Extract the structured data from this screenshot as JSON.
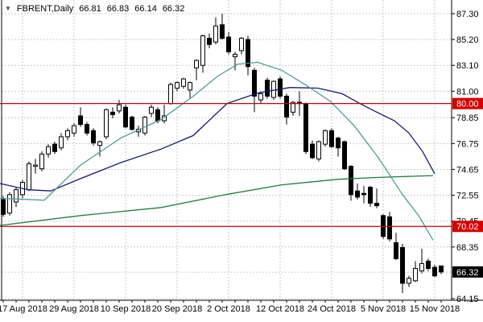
{
  "title": {
    "symbol_period": "FBRENT,Daily",
    "open": "66.81",
    "high": "66.83",
    "low": "66.14",
    "close": "66.32",
    "dropdown_icon": "symbol-dropdown"
  },
  "colors": {
    "background": "#ffffff",
    "grid": "#c9c9c9",
    "axis": "#000000",
    "candle_outline": "#000000",
    "candle_bull_fill": "#ffffff",
    "candle_bear_fill": "#000000",
    "ma_fast_teal": "#4e9c94",
    "ma_medium_navy": "#191970",
    "ma_slow_green": "#1f7a45",
    "hline_red": "#cc0000",
    "tag_red_bg": "#d40000",
    "tag_black_bg": "#000000",
    "tag_text": "#ffffff"
  },
  "chart_data": {
    "type": "candlestick",
    "title": "FBRENT,Daily 66.81 66.83 66.14 66.32",
    "symbol": "FBRENT",
    "timeframe": "Daily",
    "last_quote": {
      "open": 66.81,
      "high": 66.83,
      "low": 66.14,
      "close": 66.32
    },
    "ylim": [
      64.15,
      87.3
    ],
    "grid": true,
    "y_axis_labels": [
      {
        "text": "87.30",
        "price": 87.3
      },
      {
        "text": "85.20",
        "price": 85.2
      },
      {
        "text": "83.10",
        "price": 83.1
      },
      {
        "text": "81.00",
        "price": 81.0
      },
      {
        "text": "78.85",
        "price": 78.85
      },
      {
        "text": "76.75",
        "price": 76.75
      },
      {
        "text": "74.65",
        "price": 74.65
      },
      {
        "text": "72.55",
        "price": 72.55
      },
      {
        "text": "70.45",
        "price": 70.45
      },
      {
        "text": "68.35",
        "price": 68.35
      },
      {
        "text": "64.15",
        "price": 64.15
      }
    ],
    "extra_gridline_prices": [
      66.3
    ],
    "x_axis_labels": [
      {
        "text": "17 Aug 2018",
        "bar": 3
      },
      {
        "text": "29 Aug 2018",
        "bar": 11
      },
      {
        "text": "10 Sep 2018",
        "bar": 19
      },
      {
        "text": "20 Sep 2018",
        "bar": 27
      },
      {
        "text": "2 Oct 2018",
        "bar": 35
      },
      {
        "text": "12 Oct 2018",
        "bar": 43
      },
      {
        "text": "24 Oct 2018",
        "bar": 51
      },
      {
        "text": "5 Nov 2018",
        "bar": 59
      },
      {
        "text": "15 Nov 2018",
        "bar": 67
      }
    ],
    "candles_ohlc": [
      [
        72.2,
        72.5,
        70.8,
        71.0
      ],
      [
        71.1,
        72.8,
        70.9,
        72.6
      ],
      [
        72.0,
        73.2,
        71.6,
        73.0
      ],
      [
        72.6,
        73.8,
        72.3,
        73.6
      ],
      [
        73.0,
        75.3,
        72.9,
        75.1
      ],
      [
        74.9,
        75.5,
        74.3,
        75.0
      ],
      [
        74.7,
        76.1,
        74.5,
        75.9
      ],
      [
        75.9,
        76.7,
        75.6,
        76.5
      ],
      [
        76.7,
        76.9,
        75.9,
        76.1
      ],
      [
        76.4,
        77.6,
        76.2,
        77.3
      ],
      [
        77.3,
        78.0,
        77.0,
        77.8
      ],
      [
        77.6,
        78.4,
        77.3,
        78.2
      ],
      [
        79.0,
        79.7,
        78.1,
        78.3
      ],
      [
        78.3,
        78.5,
        77.4,
        77.6
      ],
      [
        77.8,
        78.0,
        76.6,
        76.8
      ],
      [
        76.6,
        77.0,
        75.7,
        76.9
      ],
      [
        77.3,
        79.6,
        77.1,
        79.5
      ],
      [
        79.3,
        79.7,
        78.8,
        79.1
      ],
      [
        79.4,
        80.3,
        79.2,
        79.9
      ],
      [
        79.7,
        79.9,
        78.0,
        78.1
      ],
      [
        78.9,
        79.0,
        77.8,
        77.9
      ],
      [
        77.7,
        78.2,
        77.3,
        77.9
      ],
      [
        77.6,
        79.0,
        77.4,
        78.9
      ],
      [
        79.2,
        79.9,
        78.9,
        79.7
      ],
      [
        79.5,
        79.7,
        78.4,
        78.6
      ],
      [
        78.6,
        79.9,
        78.4,
        79.0
      ],
      [
        80.0,
        81.7,
        79.9,
        81.55
      ],
      [
        81.25,
        81.8,
        81.0,
        81.7
      ],
      [
        81.4,
        82.1,
        81.2,
        82.0
      ],
      [
        81.1,
        81.8,
        80.45,
        81.7
      ],
      [
        82.9,
        83.6,
        81.9,
        83.5
      ],
      [
        83.1,
        85.6,
        82.5,
        85.5
      ],
      [
        85.3,
        85.7,
        84.5,
        84.8
      ],
      [
        85.0,
        87.0,
        84.8,
        86.3
      ],
      [
        86.4,
        87.3,
        85.2,
        85.3
      ],
      [
        85.4,
        85.8,
        84.0,
        84.2
      ],
      [
        83.8,
        84.2,
        82.7,
        84.0
      ],
      [
        84.3,
        85.4,
        84.0,
        85.3
      ],
      [
        85.2,
        85.5,
        82.3,
        83.0
      ],
      [
        82.7,
        82.9,
        79.3,
        80.6
      ],
      [
        80.3,
        81.0,
        80.0,
        80.8
      ],
      [
        81.9,
        82.1,
        80.4,
        80.6
      ],
      [
        80.5,
        81.9,
        80.3,
        81.8
      ],
      [
        82.0,
        82.2,
        80.4,
        80.6
      ],
      [
        80.6,
        80.8,
        78.3,
        78.9
      ],
      [
        79.3,
        80.2,
        79.0,
        80.1
      ],
      [
        80.1,
        81.0,
        79.0,
        80.0
      ],
      [
        80.0,
        80.1,
        75.9,
        76.1
      ],
      [
        76.7,
        77.0,
        75.5,
        75.6
      ],
      [
        75.5,
        77.0,
        75.3,
        76.9
      ],
      [
        76.7,
        77.9,
        76.5,
        77.8
      ],
      [
        77.8,
        78.0,
        76.4,
        76.5
      ],
      [
        77.2,
        77.3,
        75.7,
        76.4
      ],
      [
        76.9,
        77.0,
        74.6,
        74.7
      ],
      [
        74.9,
        75.0,
        72.1,
        72.6
      ],
      [
        72.9,
        73.5,
        72.2,
        72.4
      ],
      [
        72.7,
        73.3,
        71.9,
        72.6
      ],
      [
        73.2,
        73.3,
        71.6,
        71.9
      ],
      [
        71.9,
        73.1,
        71.5,
        71.7
      ],
      [
        70.9,
        71.0,
        69.0,
        69.2
      ],
      [
        70.8,
        71.2,
        68.8,
        69.0
      ],
      [
        68.7,
        69.5,
        67.3,
        67.4
      ],
      [
        68.3,
        68.6,
        64.6,
        65.4
      ],
      [
        65.4,
        66.0,
        65.1,
        65.8
      ],
      [
        65.6,
        67.2,
        65.5,
        66.6
      ],
      [
        66.4,
        68.2,
        66.2,
        67.0
      ],
      [
        67.2,
        67.4,
        66.4,
        66.6
      ],
      [
        66.7,
        66.9,
        65.9,
        66.0
      ],
      [
        66.81,
        66.83,
        66.14,
        66.32
      ]
    ],
    "moving_averages": [
      {
        "name": "ma-slow-green",
        "points": [
          [
            0,
            70.1
          ],
          [
            100,
            70.9
          ],
          [
            200,
            71.55
          ],
          [
            280,
            72.6
          ],
          [
            350,
            73.4
          ],
          [
            420,
            73.85
          ],
          [
            470,
            74.0
          ],
          [
            538,
            74.15
          ]
        ]
      },
      {
        "name": "ma-medium-navy",
        "points": [
          [
            0,
            73.5
          ],
          [
            35,
            73.0
          ],
          [
            63,
            72.9
          ],
          [
            100,
            73.9
          ],
          [
            150,
            75.2
          ],
          [
            200,
            76.3
          ],
          [
            240,
            77.4
          ],
          [
            282,
            80.0
          ],
          [
            320,
            80.85
          ],
          [
            360,
            81.3
          ],
          [
            395,
            81.25
          ],
          [
            425,
            80.8
          ],
          [
            447,
            80.0
          ],
          [
            468,
            79.3
          ],
          [
            490,
            78.6
          ],
          [
            508,
            77.6
          ],
          [
            525,
            76.1
          ],
          [
            540,
            74.3
          ]
        ]
      },
      {
        "name": "ma-fast-teal",
        "points": [
          [
            0,
            72.3
          ],
          [
            55,
            72.15
          ],
          [
            100,
            75.0
          ],
          [
            150,
            77.2
          ],
          [
            200,
            78.7
          ],
          [
            240,
            80.6
          ],
          [
            270,
            82.2
          ],
          [
            295,
            83.2
          ],
          [
            320,
            83.35
          ],
          [
            350,
            82.7
          ],
          [
            380,
            81.5
          ],
          [
            410,
            80.2
          ],
          [
            440,
            78.2
          ],
          [
            470,
            75.6
          ],
          [
            500,
            72.6
          ],
          [
            520,
            70.9
          ],
          [
            538,
            68.9
          ]
        ]
      }
    ],
    "horizontal_lines": [
      {
        "price": 80.0,
        "label": "80.00",
        "style": "red"
      },
      {
        "price": 70.02,
        "label": "70.02",
        "style": "red"
      }
    ],
    "current_price_tag": {
      "price": 66.32,
      "label": "66.32",
      "style": "black"
    }
  }
}
